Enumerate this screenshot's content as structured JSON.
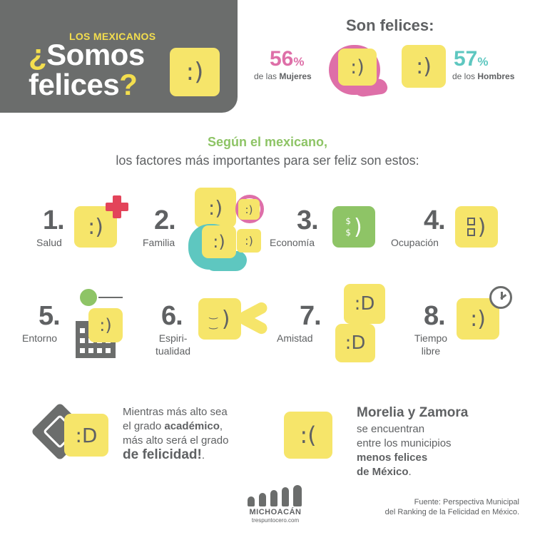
{
  "header": {
    "kicker": "LOS MEXICANOS",
    "title_q_open": "¿",
    "title_line1": "Somos",
    "title_line2": "felices",
    "title_q_close": "?",
    "face": ":)"
  },
  "stats": {
    "heading": "Son felices:",
    "women": {
      "value": "56",
      "unit": "%",
      "label_pre": "de las ",
      "label_bold": "Mujeres",
      "face": ":)"
    },
    "men": {
      "value": "57",
      "unit": "%",
      "label_pre": "de los ",
      "label_bold": "Hombres",
      "face": ":)"
    }
  },
  "intro": {
    "line1": "Según el mexicano,",
    "line2": "los factores más importantes para ser feliz son estos:"
  },
  "factors": [
    {
      "num": "1.",
      "label": "Salud",
      "face": ":)"
    },
    {
      "num": "2.",
      "label": "Familia",
      "face": ":)",
      "face_small": ":)",
      "face_mid": ":)",
      "face_child": ":)"
    },
    {
      "num": "3.",
      "label": "Economía",
      "face": ")",
      "face_eyes": "$"
    },
    {
      "num": "4.",
      "label": "Ocupación",
      "face": ")"
    },
    {
      "num": "5.",
      "label": "Entorno",
      "face": ":)"
    },
    {
      "num": "6.",
      "label_l1": "Espiri-",
      "label_l2": "tualidad",
      "face": ")"
    },
    {
      "num": "7.",
      "label": "Amistad",
      "face": ":D",
      "face2": ":D"
    },
    {
      "num": "8.",
      "label_l1": "Tiempo",
      "label_l2": "libre",
      "face": ":)"
    }
  ],
  "education": {
    "face": ":D",
    "line1": "Mientras más alto sea",
    "line2_pre": "el grado ",
    "line2_bold": "académico",
    "line2_post": ",",
    "line3": "más alto será el grado",
    "line4_bold": "de felicidad!",
    "line4_post": "."
  },
  "cities": {
    "face": ":(",
    "title": "Morelia y Zamora",
    "line1": "se encuentran",
    "line2": "entre los municipios",
    "line3_bold": "menos felices",
    "line4_bold": "de México",
    "line4_post": "."
  },
  "source": {
    "line1": "Fuente: Perspectiva Municipal",
    "line2": "del Ranking de la Felicidad en México."
  },
  "logo": {
    "name": "MICHOACÁN",
    "site": "trespuntocero.com"
  },
  "colors": {
    "yellow": "#f6e56a",
    "gray": "#6b6d6c",
    "pink": "#de6fa8",
    "teal": "#5ec7c0",
    "green": "#8ec466",
    "red": "#e3445a"
  }
}
